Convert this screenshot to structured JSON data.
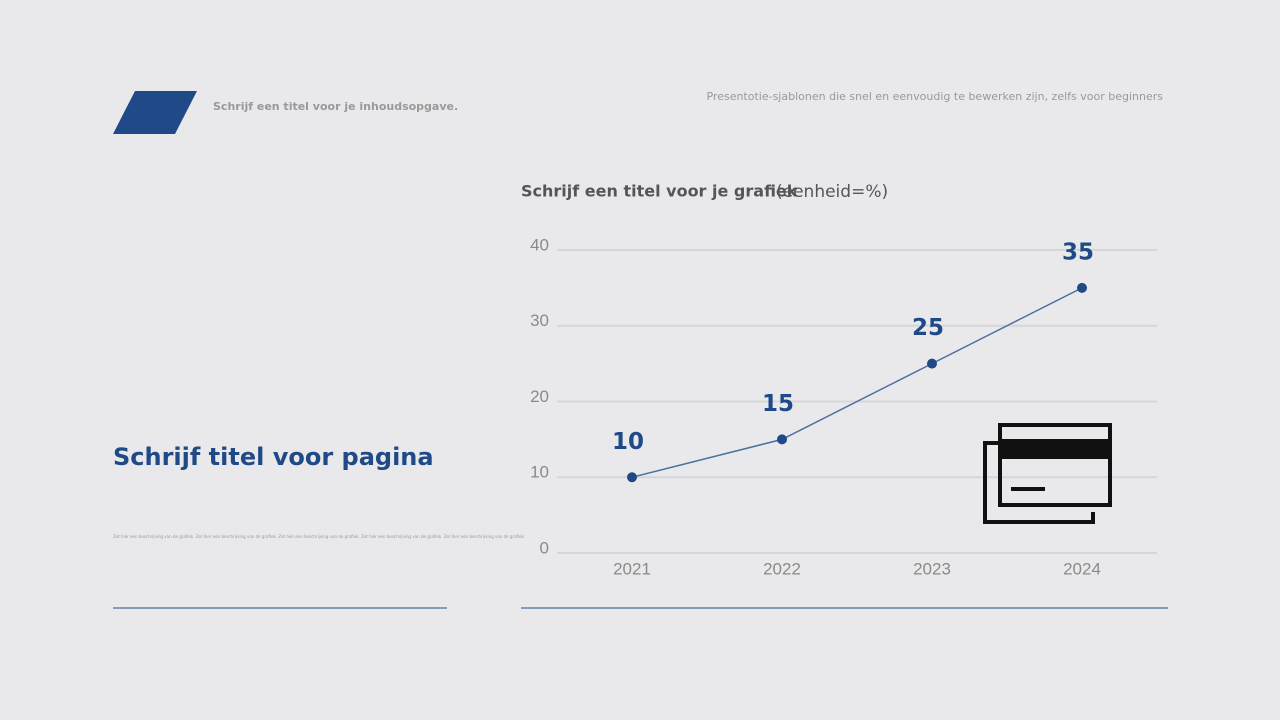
{
  "header": {
    "subtitle": "Schrijf een titel voor je inhoudsopgave.",
    "tagline": "Presentotie-sjablonen die snel en eenvoudig te bewerken zijn, zelfs voor beginners"
  },
  "page": {
    "title": "Schrijf titel voor pagina",
    "description": "Zet hier een beschrijving van de grafiek. Zet hier een beschrijving van de grafiek. Zet hier een beschrijving van de grafiek. Zet hier een beschrijving van de grafiek. Zet hier een beschrijving van de grafiek."
  },
  "chart_data": {
    "type": "line",
    "title": "Schrijf een titel voor je grafiek",
    "unit": "(eenheid=%)",
    "categories": [
      "2021",
      "2022",
      "2023",
      "2024"
    ],
    "values": [
      10,
      15,
      25,
      35
    ],
    "color": "#1f4a87",
    "ylim": [
      0,
      40
    ],
    "yticks": [
      0,
      10,
      20,
      30,
      40
    ],
    "grid": true
  }
}
